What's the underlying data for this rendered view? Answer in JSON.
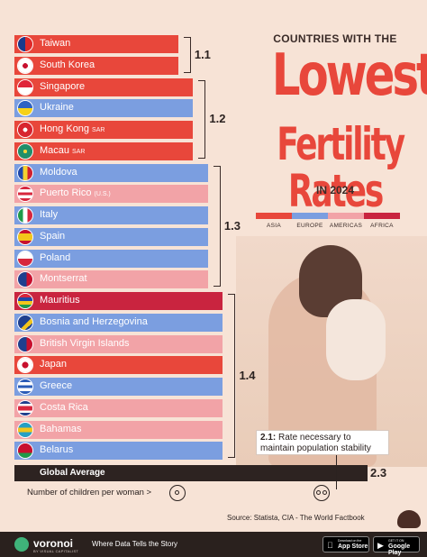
{
  "title": {
    "top": "COUNTRIES WITH THE",
    "main1": "Lowest",
    "main2": "Fertility Rates",
    "year": "IN 2024"
  },
  "legend": [
    {
      "label": "ASIA",
      "color": "#e8473b"
    },
    {
      "label": "EUROPE",
      "color": "#7b9ee0"
    },
    {
      "label": "AMERICAS",
      "color": "#f2a3a7"
    },
    {
      "label": "AFRICA",
      "color": "#c9243f"
    }
  ],
  "chart_data": {
    "type": "bar",
    "orientation": "horizontal",
    "x_max": 2.3,
    "categories": [
      {
        "name": "Taiwan",
        "suffix": "",
        "value": 1.1,
        "region": "ASIA",
        "flag": "taiwan-flag-icon"
      },
      {
        "name": "South Korea",
        "suffix": "",
        "value": 1.1,
        "region": "ASIA",
        "flag": "south-korea-flag-icon"
      },
      {
        "name": "Singapore",
        "suffix": "",
        "value": 1.2,
        "region": "ASIA",
        "flag": "singapore-flag-icon"
      },
      {
        "name": "Ukraine",
        "suffix": "",
        "value": 1.2,
        "region": "EUROPE",
        "flag": "ukraine-flag-icon"
      },
      {
        "name": "Hong Kong",
        "suffix": "SAR",
        "value": 1.2,
        "region": "ASIA",
        "flag": "hong-kong-flag-icon"
      },
      {
        "name": "Macau",
        "suffix": "SAR",
        "value": 1.2,
        "region": "ASIA",
        "flag": "macau-flag-icon"
      },
      {
        "name": "Moldova",
        "suffix": "",
        "value": 1.3,
        "region": "EUROPE",
        "flag": "moldova-flag-icon"
      },
      {
        "name": "Puerto Rico",
        "suffix": "(U.S.)",
        "value": 1.3,
        "region": "AMERICAS",
        "flag": "puerto-rico-flag-icon"
      },
      {
        "name": "Italy",
        "suffix": "",
        "value": 1.3,
        "region": "EUROPE",
        "flag": "italy-flag-icon"
      },
      {
        "name": "Spain",
        "suffix": "",
        "value": 1.3,
        "region": "EUROPE",
        "flag": "spain-flag-icon"
      },
      {
        "name": "Poland",
        "suffix": "",
        "value": 1.3,
        "region": "EUROPE",
        "flag": "poland-flag-icon"
      },
      {
        "name": "Montserrat",
        "suffix": "",
        "value": 1.3,
        "region": "AMERICAS",
        "flag": "montserrat-flag-icon"
      },
      {
        "name": "Mauritius",
        "suffix": "",
        "value": 1.4,
        "region": "AFRICA",
        "flag": "mauritius-flag-icon"
      },
      {
        "name": "Bosnia and Herzegovina",
        "suffix": "",
        "value": 1.4,
        "region": "EUROPE",
        "flag": "bosnia-flag-icon"
      },
      {
        "name": "British Virgin Islands",
        "suffix": "",
        "value": 1.4,
        "region": "AMERICAS",
        "flag": "bvi-flag-icon"
      },
      {
        "name": "Japan",
        "suffix": "",
        "value": 1.4,
        "region": "ASIA",
        "flag": "japan-flag-icon"
      },
      {
        "name": "Greece",
        "suffix": "",
        "value": 1.4,
        "region": "EUROPE",
        "flag": "greece-flag-icon"
      },
      {
        "name": "Costa Rica",
        "suffix": "",
        "value": 1.4,
        "region": "AMERICAS",
        "flag": "costa-rica-flag-icon"
      },
      {
        "name": "Bahamas",
        "suffix": "",
        "value": 1.4,
        "region": "AMERICAS",
        "flag": "bahamas-flag-icon"
      },
      {
        "name": "Belarus",
        "suffix": "",
        "value": 1.4,
        "region": "EUROPE",
        "flag": "belarus-flag-icon"
      }
    ],
    "group_labels": [
      {
        "label": "1.1",
        "value": 1.1
      },
      {
        "label": "1.2",
        "value": 1.2
      },
      {
        "label": "1.3",
        "value": 1.3
      },
      {
        "label": "1.4",
        "value": 1.4
      }
    ],
    "average": {
      "label": "Global Average",
      "value": 2.3,
      "display": "2.3"
    },
    "reference": {
      "label_bold": "2.1:",
      "label": " Rate necessary to maintain population stability",
      "value": 2.1
    },
    "axis_note": "Number of children per woman >"
  },
  "source": "Source: Statista,  CIA - The World Factbook",
  "footer": {
    "brand": "voronoi",
    "brand_sub": "BY VISUAL CAPITALIST",
    "tagline": "Where Data Tells the Story",
    "app_store_small": "Download on the",
    "app_store": "App Store",
    "google_play_small": "GET IT ON",
    "google_play": "Google Play"
  }
}
